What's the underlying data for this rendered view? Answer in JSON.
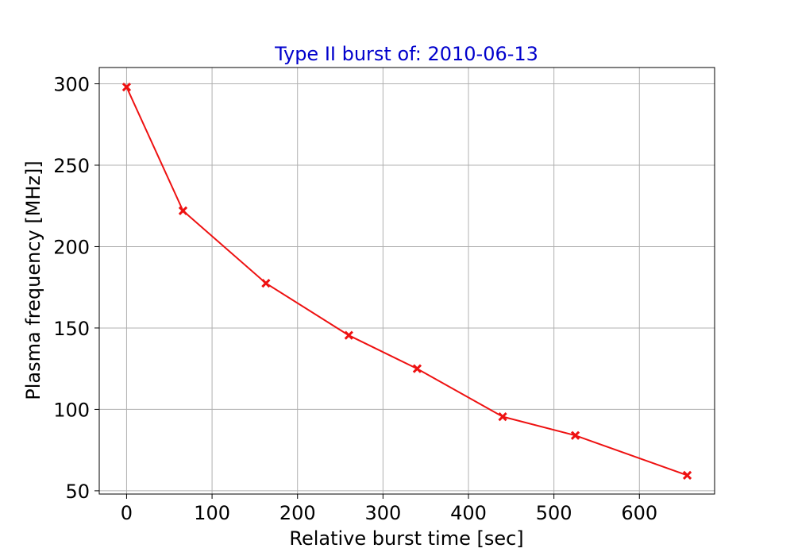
{
  "chart_data": {
    "type": "line",
    "title": "Type II burst of: 2010-06-13",
    "xlabel": "Relative burst time [sec]",
    "ylabel": "Plasma frequency [MHz]]",
    "xlim": [
      -32,
      688
    ],
    "ylim": [
      48,
      310
    ],
    "xticks": [
      0,
      100,
      200,
      300,
      400,
      500,
      600
    ],
    "yticks": [
      50,
      100,
      150,
      200,
      250,
      300
    ],
    "grid": true,
    "series": [
      {
        "color": "#ee1111",
        "marker": "x",
        "x": [
          0,
          66,
          163,
          260,
          340,
          440,
          525,
          656
        ],
        "y": [
          298,
          222,
          177.5,
          145.5,
          125,
          95.5,
          84,
          59.5
        ]
      }
    ]
  },
  "colors": {
    "title": "#0000cc",
    "line": "#ee1111",
    "grid": "#b0b0b0"
  }
}
